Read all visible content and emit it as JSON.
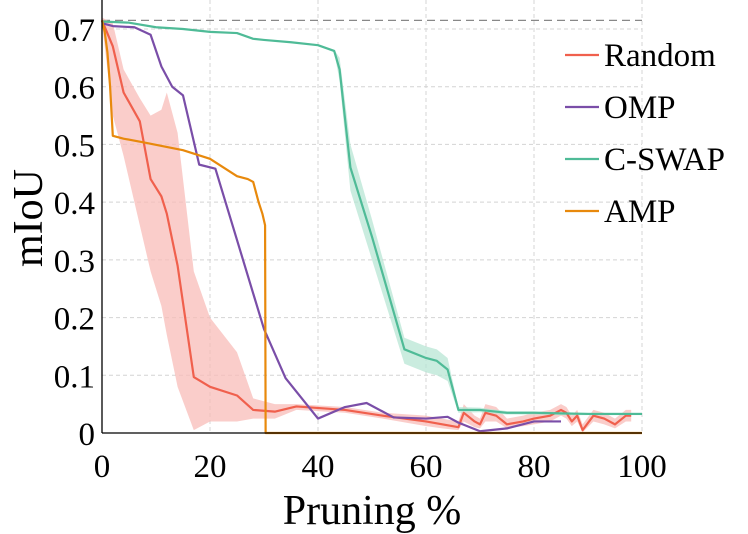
{
  "chart_data": {
    "type": "line",
    "title": "",
    "xlabel": "Pruning %",
    "ylabel": "mIoU",
    "xlim": [
      0,
      100
    ],
    "ylim": [
      0,
      0.72
    ],
    "x_ticks": [
      0,
      20,
      40,
      60,
      80,
      100
    ],
    "y_ticks": [
      0,
      0.1,
      0.2,
      0.3,
      0.4,
      0.5,
      0.6,
      0.7
    ],
    "y_tick_labels": [
      "0",
      "0.1",
      "0.2",
      "0.3",
      "0.4",
      "0.5",
      "0.6",
      "0.7"
    ],
    "grid": true,
    "legend_position": "top-right",
    "baseline": {
      "y": 0.715,
      "style": "dashed",
      "color": "#888888"
    },
    "series": [
      {
        "name": "Random",
        "color": "#f0604d",
        "band_color": "#f8bcb8",
        "x": [
          0,
          2,
          4,
          7,
          9,
          11,
          12,
          14,
          17,
          20,
          25,
          28,
          32,
          36,
          45,
          52,
          60,
          63,
          66,
          67,
          69,
          70,
          71,
          73,
          75,
          78,
          80,
          83,
          85,
          86,
          87,
          88,
          89,
          91,
          93,
          95,
          97,
          98
        ],
        "values": [
          0.715,
          0.67,
          0.59,
          0.54,
          0.44,
          0.41,
          0.38,
          0.29,
          0.097,
          0.08,
          0.065,
          0.04,
          0.037,
          0.046,
          0.04,
          0.03,
          0.02,
          0.015,
          0.01,
          0.035,
          0.02,
          0.015,
          0.035,
          0.03,
          0.015,
          0.02,
          0.025,
          0.03,
          0.04,
          0.035,
          0.02,
          0.03,
          0.005,
          0.03,
          0.025,
          0.015,
          0.03,
          0.03
        ],
        "band_lower": [
          0.71,
          0.55,
          0.48,
          0.36,
          0.28,
          0.22,
          0.17,
          0.08,
          0.005,
          0.02,
          0.02,
          0.025,
          0.025,
          0.04,
          0.035,
          0.025,
          0.012,
          0.008,
          0.005,
          0.02,
          0.01,
          0.008,
          0.02,
          0.02,
          0.008,
          0.012,
          0.015,
          0.02,
          0.03,
          0.025,
          0.012,
          0.02,
          0.001,
          0.02,
          0.015,
          0.008,
          0.02,
          0.02
        ],
        "band_upper": [
          0.72,
          0.71,
          0.63,
          0.58,
          0.55,
          0.56,
          0.59,
          0.52,
          0.28,
          0.2,
          0.14,
          0.06,
          0.05,
          0.05,
          0.045,
          0.035,
          0.03,
          0.025,
          0.02,
          0.05,
          0.03,
          0.025,
          0.05,
          0.045,
          0.025,
          0.03,
          0.035,
          0.04,
          0.05,
          0.045,
          0.03,
          0.04,
          0.015,
          0.04,
          0.035,
          0.025,
          0.04,
          0.04
        ]
      },
      {
        "name": "OMP",
        "color": "#7a4ea8",
        "x": [
          0,
          2,
          6,
          9,
          11,
          13,
          15,
          18,
          21,
          30,
          34,
          40,
          45,
          49,
          54,
          60,
          64,
          66,
          70,
          75,
          80,
          85
        ],
        "values": [
          0.71,
          0.705,
          0.703,
          0.69,
          0.635,
          0.6,
          0.585,
          0.465,
          0.458,
          0.18,
          0.095,
          0.025,
          0.045,
          0.052,
          0.027,
          0.025,
          0.028,
          0.018,
          0.003,
          0.008,
          0.02,
          0.02
        ]
      },
      {
        "name": "C-SWAP",
        "color": "#4fbb97",
        "band_color": "#b8e6d4",
        "x": [
          0,
          5,
          10,
          15,
          20,
          25,
          28,
          30,
          35,
          40,
          43,
          44,
          46,
          50,
          56,
          60,
          62,
          64,
          66,
          70,
          75,
          80,
          85,
          90,
          95,
          100
        ],
        "values": [
          0.713,
          0.711,
          0.703,
          0.7,
          0.695,
          0.693,
          0.683,
          0.681,
          0.677,
          0.672,
          0.662,
          0.63,
          0.46,
          0.34,
          0.145,
          0.13,
          0.125,
          0.11,
          0.04,
          0.04,
          0.035,
          0.035,
          0.034,
          0.033,
          0.033,
          0.033
        ],
        "band_lower": [
          0.712,
          0.71,
          0.702,
          0.699,
          0.694,
          0.692,
          0.682,
          0.68,
          0.676,
          0.671,
          0.66,
          0.61,
          0.42,
          0.3,
          0.12,
          0.105,
          0.1,
          0.09,
          0.035,
          0.036,
          0.032,
          0.032,
          0.031,
          0.031,
          0.031,
          0.031
        ],
        "band_upper": [
          0.714,
          0.712,
          0.704,
          0.701,
          0.696,
          0.694,
          0.684,
          0.682,
          0.678,
          0.673,
          0.664,
          0.65,
          0.5,
          0.37,
          0.165,
          0.15,
          0.145,
          0.13,
          0.045,
          0.044,
          0.038,
          0.038,
          0.036,
          0.035,
          0.035,
          0.035
        ]
      },
      {
        "name": "AMP",
        "color": "#e8890c",
        "x": [
          0,
          0.5,
          1,
          1.5,
          2,
          4,
          8,
          15,
          20,
          25,
          27,
          28,
          29,
          29.7,
          30.2,
          30.3,
          35,
          45,
          60,
          80,
          100
        ],
        "values": [
          0.715,
          0.695,
          0.66,
          0.6,
          0.515,
          0.51,
          0.503,
          0.49,
          0.475,
          0.445,
          0.44,
          0.435,
          0.4,
          0.38,
          0.36,
          0.0,
          0.0,
          0.0,
          0.0,
          0.0,
          0.0
        ]
      }
    ]
  },
  "legend": {
    "items": [
      {
        "label": "Random",
        "color": "#f0604d"
      },
      {
        "label": "OMP",
        "color": "#7a4ea8"
      },
      {
        "label": "C-SWAP",
        "color": "#4fbb97"
      },
      {
        "label": "AMP",
        "color": "#e8890c"
      }
    ]
  }
}
